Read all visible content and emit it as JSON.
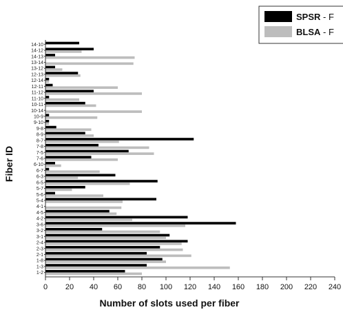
{
  "chart_data": {
    "type": "bar",
    "orientation": "horizontal",
    "xlabel": "Number of slots used per fiber",
    "ylabel": "Fiber ID",
    "xlim": [
      0,
      240
    ],
    "xticks": [
      "0",
      "20",
      "40",
      "60",
      "80",
      "100",
      "120",
      "140",
      "160",
      "180",
      "200",
      "220",
      "240"
    ],
    "grid": false,
    "legend_position": "top-right",
    "categories": [
      "1-2",
      "1-3",
      "1-8",
      "2-1",
      "2-3",
      "2-4",
      "3-1",
      "3-2",
      "3-6",
      "4-2",
      "4-5",
      "4-1",
      "5-4",
      "5-6",
      "5-7",
      "6-5",
      "6-3",
      "6-7",
      "6-10",
      "7-6",
      "7-5",
      "7-8",
      "8-7",
      "8-9",
      "9-8",
      "9-10",
      "10-9",
      "10-14",
      "10-11",
      "11-10",
      "11-12",
      "12-11",
      "12-14",
      "12-13",
      "13-12",
      "13-14",
      "14-13",
      "14-12",
      "14-10"
    ],
    "series": [
      {
        "name": "SPSR",
        "color": "#000000",
        "values": [
          66,
          84,
          97,
          84,
          95,
          118,
          103,
          47,
          158,
          118,
          53,
          0,
          92,
          8,
          33,
          93,
          58,
          3,
          8,
          38,
          69,
          44,
          123,
          33,
          9,
          3,
          3,
          0,
          33,
          3,
          40,
          6,
          3,
          27,
          8,
          0,
          8,
          40,
          28
        ]
      },
      {
        "name": "BLSA",
        "color": "#bdbdbd",
        "values": [
          80,
          153,
          100,
          121,
          114,
          113,
          100,
          95,
          116,
          72,
          59,
          63,
          64,
          48,
          22,
          70,
          27,
          45,
          13,
          60,
          90,
          86,
          61,
          40,
          38,
          3,
          43,
          80,
          42,
          28,
          80,
          60,
          3,
          29,
          14,
          73,
          74,
          30,
          0
        ]
      }
    ]
  },
  "legend": {
    "entries": [
      {
        "label": "SPSR",
        "suffix": " - F"
      },
      {
        "label": "BLSA",
        "suffix": " - F"
      }
    ]
  }
}
